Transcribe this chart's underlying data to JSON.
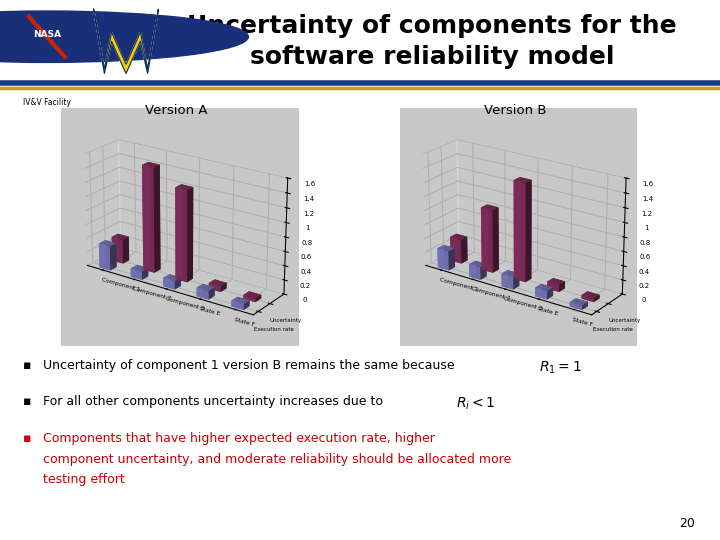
{
  "title_line1": "Uncertainty of components for the",
  "title_line2": "software reliability model",
  "title_fontsize": 18,
  "background_color": "#ffffff",
  "blue_line_color": "#1a3a8a",
  "gold_line_color": "#c8a000",
  "version_a_label": "Version A",
  "version_b_label": "Version B",
  "bar_labels": [
    "Component 1",
    "Component 2",
    "Component 3",
    "State E",
    "State F"
  ],
  "version_a_uncertainty": [
    0.35,
    1.5,
    1.3,
    0.08,
    0.05
  ],
  "version_a_execution": [
    0.35,
    0.12,
    0.12,
    0.12,
    0.08
  ],
  "version_b_uncertainty": [
    0.35,
    0.9,
    1.4,
    0.1,
    0.05
  ],
  "version_b_execution": [
    0.28,
    0.18,
    0.18,
    0.12,
    0.06
  ],
  "uncertainty_color": "#8b3060",
  "execution_color": "#8080c8",
  "chart_bg": "#c8c8c8",
  "ymax": 1.6,
  "ytick_labels": [
    "0",
    "0.2",
    "0.4",
    "0.6",
    "0.8",
    "1",
    "1.2",
    "1.4",
    "1.6"
  ],
  "ytick_vals": [
    0,
    0.2,
    0.4,
    0.6,
    0.8,
    1.0,
    1.2,
    1.4,
    1.6
  ],
  "bullet1_text": "Uncertainty of component 1 version B remains the same because ",
  "bullet1_math": "$R_1=1$",
  "bullet2_text": "For all other components uncertainty increases due to ",
  "bullet2_math": "$R_i<1$",
  "bullet3_line1": "Components that have higher expected execution rate, higher",
  "bullet3_line2": "component uncertainty, and moderate reliability should be allocated more",
  "bullet3_line3": "testing effort",
  "bullet3_color": "#cc0000",
  "bullet_color": "#000000",
  "legend_uncertainty": "Uncertainty",
  "legend_execution": "Execution rate",
  "page_number": "20"
}
